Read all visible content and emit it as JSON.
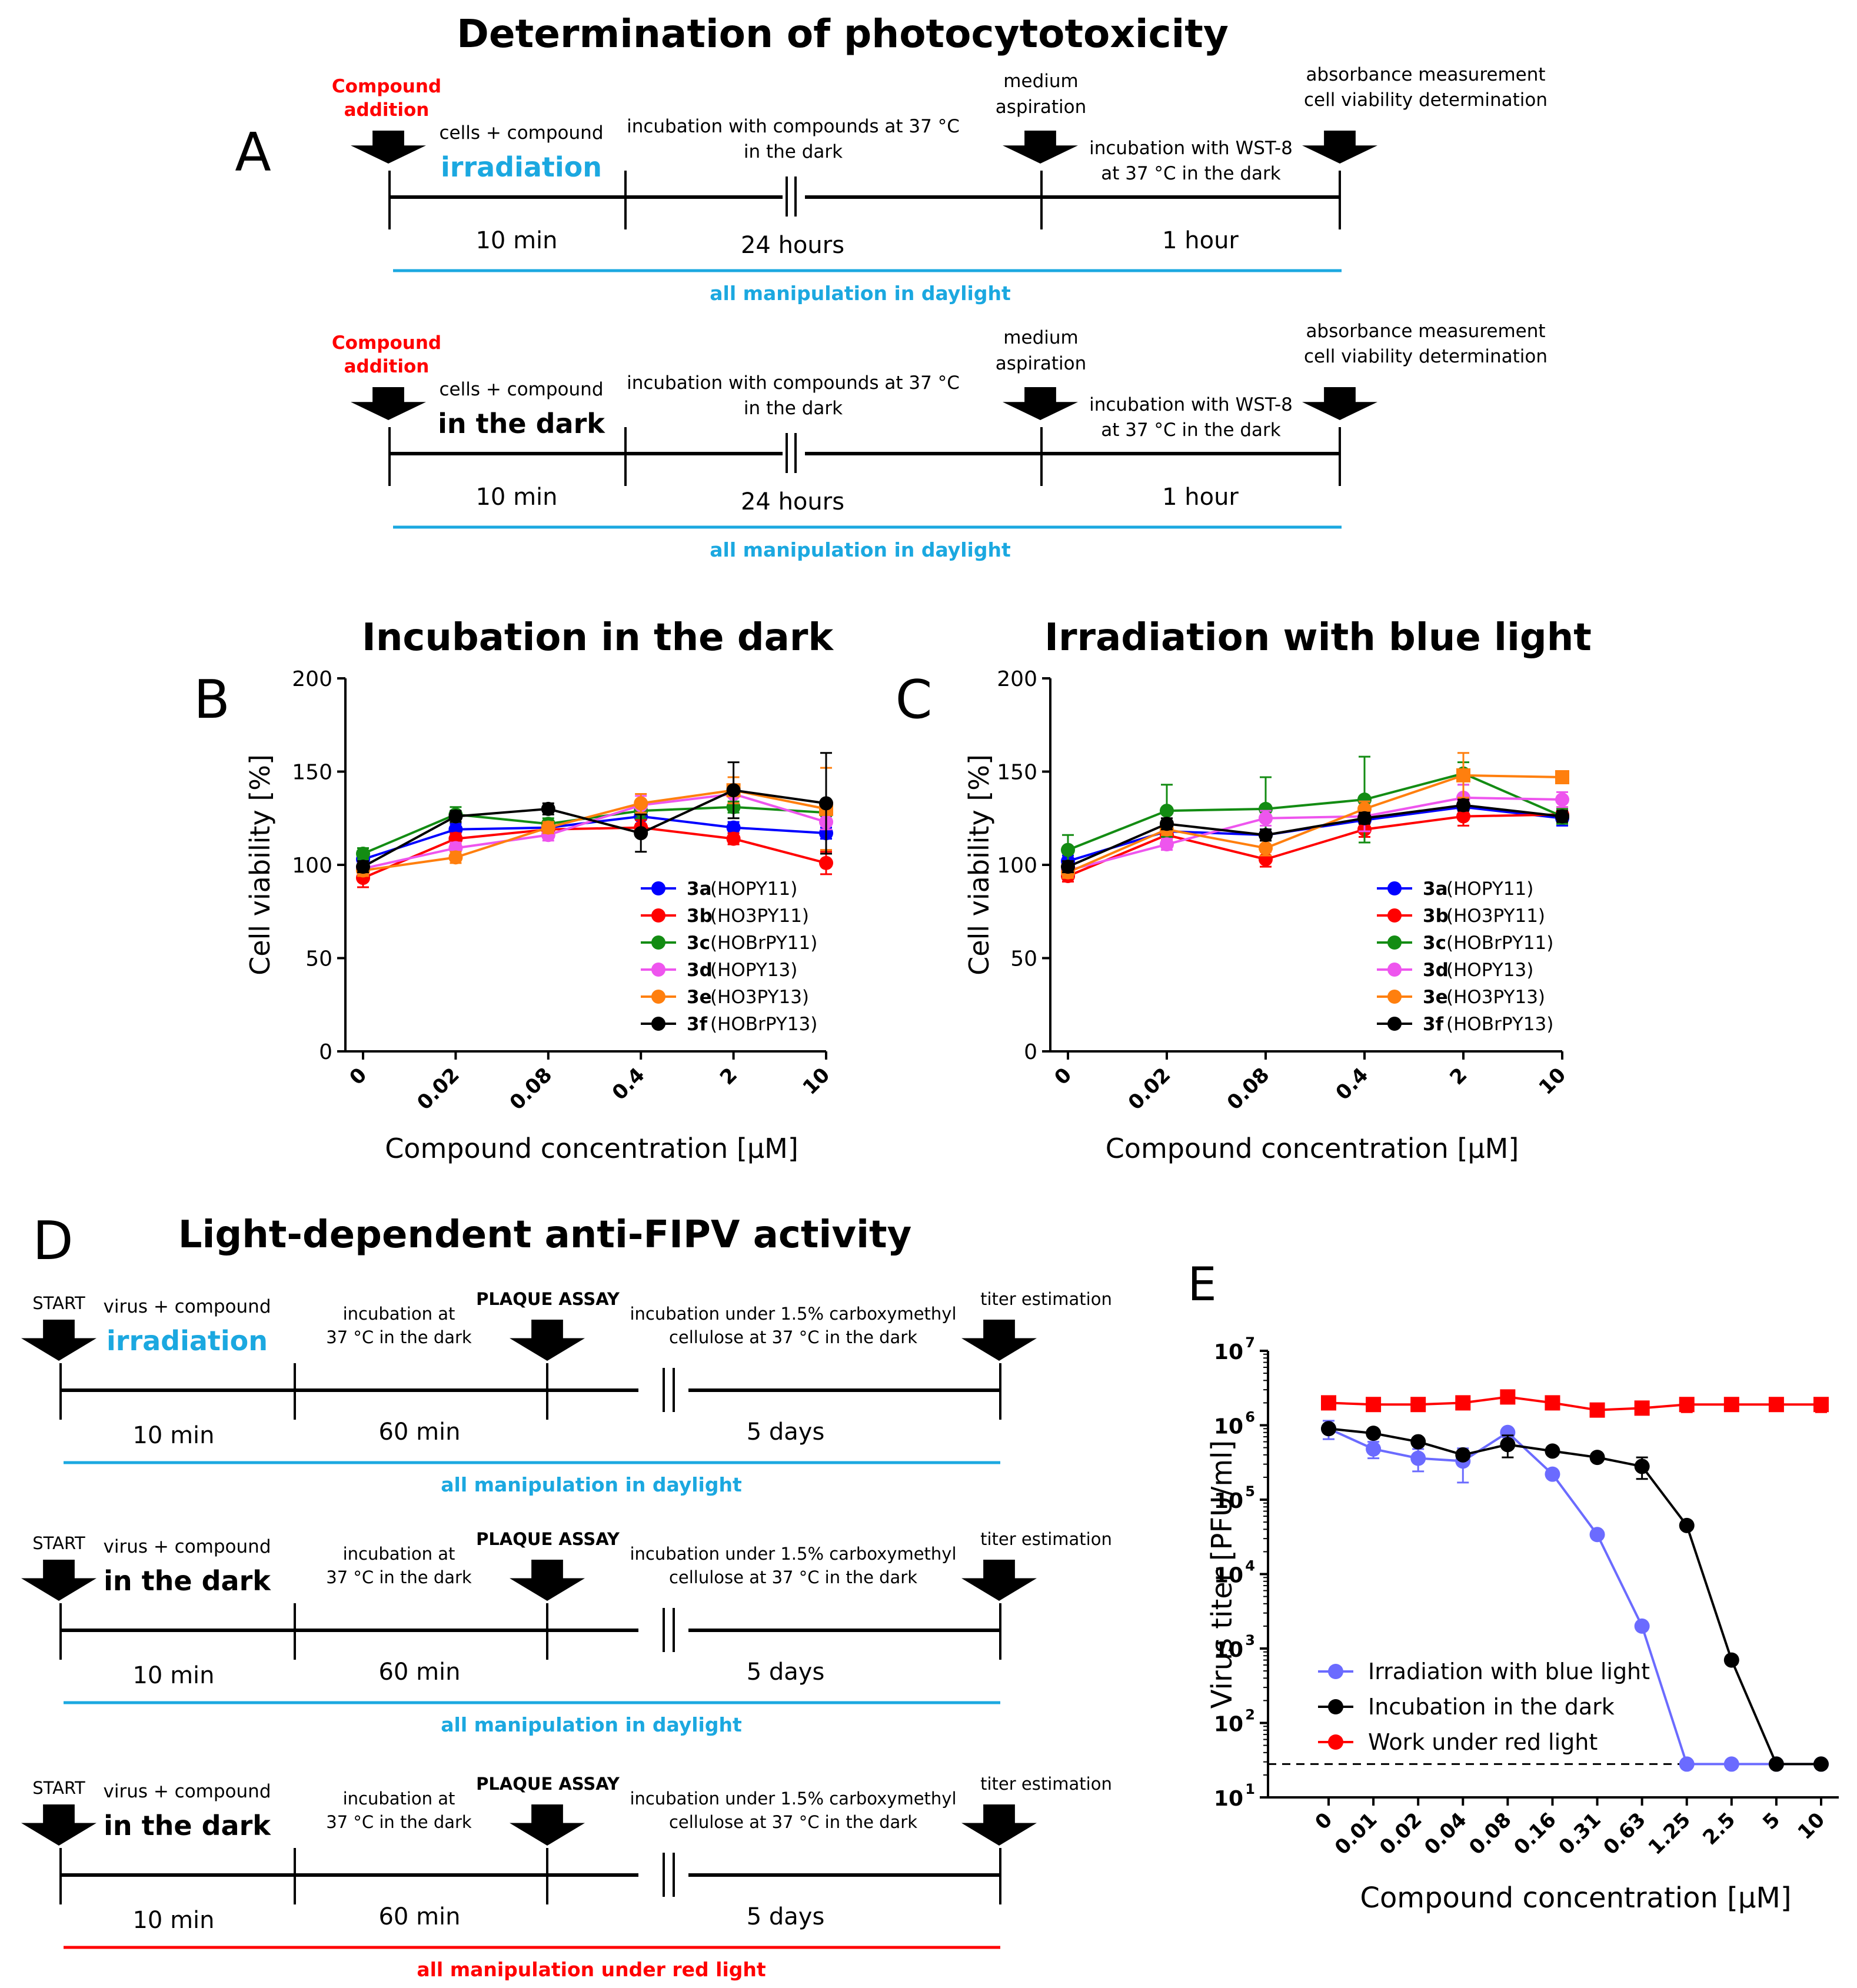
{
  "colors": {
    "red": "#ff0000",
    "cyan": "#1ba8e0",
    "black": "#000000",
    "series_3a": "#0000ff",
    "series_3b": "#ff0000",
    "series_3c": "#138c13",
    "series_3d": "#ee55ee",
    "series_3e": "#ff7f0e",
    "series_3f": "#000000",
    "blue_light": "#6b6bff",
    "dark": "#000000",
    "red_light": "#ff0000"
  },
  "icons": {
    "step_marker": "arrow-down-icon"
  },
  "panel_a": {
    "title": "Determination of photocytotoxicity",
    "letter": "A",
    "timelines": [
      {
        "compound_addition": [
          "Compound",
          "addition"
        ],
        "step1": [
          "cells + compound"
        ],
        "step1_emph": "irradiation",
        "step1_emph_color": "#1ba8e0",
        "step2": [
          "incubation with compounds at 37 °C",
          "in the dark"
        ],
        "medium": [
          "medium",
          "aspiration"
        ],
        "step3": [
          "incubation with WST-8",
          "at 37 °C in the dark"
        ],
        "end": [
          "absorbance measurement",
          "cell viability determination"
        ],
        "dur1": "10 min",
        "dur2": "24 hours",
        "dur3": "1 hour",
        "note": "all manipulation in daylight",
        "note_color": "#1ba8e0"
      },
      {
        "compound_addition": [
          "Compound",
          "addition"
        ],
        "step1": [
          "cells + compound"
        ],
        "step1_emph": "in the dark",
        "step1_emph_color": "#000000",
        "step2": [
          "incubation with compounds at 37 °C",
          "in the dark"
        ],
        "medium": [
          "medium",
          "aspiration"
        ],
        "step3": [
          "incubation with WST-8",
          "at 37 °C in the dark"
        ],
        "end": [
          "absorbance measurement",
          "cell viability determination"
        ],
        "dur1": "10 min",
        "dur2": "24 hours",
        "dur3": "1 hour",
        "note": "all manipulation in daylight",
        "note_color": "#1ba8e0"
      }
    ]
  },
  "panel_d": {
    "title": "Light-dependent anti-FIPV activity",
    "letter": "D",
    "timelines": [
      {
        "start": "START",
        "step1": "virus + compound",
        "step1_emph": "irradiation",
        "step1_emph_color": "#1ba8e0",
        "step2": [
          "incubation at",
          "37 °C in the dark"
        ],
        "plaque": "PLAQUE ASSAY",
        "step3": [
          "incubation under 1.5% carboxymethyl",
          "cellulose at 37 °C in the dark"
        ],
        "end": "titer estimation",
        "dur1": "10 min",
        "dur2": "60 min",
        "dur3": "5 days",
        "note": "all manipulation in daylight",
        "note_color": "#1ba8e0"
      },
      {
        "start": "START",
        "step1": "virus + compound",
        "step1_emph": "in the dark",
        "step1_emph_color": "#000000",
        "step2": [
          "incubation at",
          "37 °C in the dark"
        ],
        "plaque": "PLAQUE ASSAY",
        "step3": [
          "incubation under 1.5% carboxymethyl",
          "cellulose at 37 °C in the dark"
        ],
        "end": "titer estimation",
        "dur1": "10 min",
        "dur2": "60 min",
        "dur3": "5 days",
        "note": "all manipulation in daylight",
        "note_color": "#1ba8e0"
      },
      {
        "start": "START",
        "step1": "virus + compound",
        "step1_emph": "in the dark",
        "step1_emph_color": "#000000",
        "step2": [
          "incubation at",
          "37 °C in the dark"
        ],
        "plaque": "PLAQUE ASSAY",
        "step3": [
          "incubation under 1.5% carboxymethyl",
          "cellulose at 37 °C in the dark"
        ],
        "end": "titer estimation",
        "dur1": "10 min",
        "dur2": "60 min",
        "dur3": "5 days",
        "note": "all manipulation under red light",
        "note_color": "#ff0000"
      }
    ]
  },
  "chart_data": [
    {
      "id": "B",
      "letter": "B",
      "type": "line",
      "title": "Incubation in the dark",
      "xlabel": "Compound concentration [µM]",
      "ylabel": "Cell viability [%]",
      "categories": [
        "0",
        "0.02",
        "0.08",
        "0.4",
        "2",
        "10"
      ],
      "ylim": [
        0,
        200
      ],
      "yticks": [
        0,
        50,
        100,
        150,
        200
      ],
      "legend_position": "bottom-right",
      "series": [
        {
          "key": "3a",
          "name": "(HOPY11)",
          "color": "#0000ff",
          "values": [
            103,
            119,
            120,
            126,
            120,
            117
          ],
          "errors": [
            4,
            3,
            3,
            4,
            3,
            3
          ]
        },
        {
          "key": "3b",
          "name": "(HO3PY11)",
          "color": "#ff0000",
          "values": [
            93,
            114,
            119,
            120,
            114,
            101
          ],
          "errors": [
            5,
            3,
            3,
            4,
            3,
            6
          ]
        },
        {
          "key": "3c",
          "name": "(HOBrPY11)",
          "color": "#138c13",
          "values": [
            106,
            127,
            122,
            129,
            131,
            128
          ],
          "errors": [
            3,
            4,
            3,
            4,
            3,
            4
          ]
        },
        {
          "key": "3d",
          "name": "(HOPY13)",
          "color": "#ee55ee",
          "values": [
            98,
            109,
            116,
            132,
            138,
            123
          ],
          "errors": [
            3,
            3,
            3,
            5,
            5,
            4
          ]
        },
        {
          "key": "3e",
          "name": "(HO3PY13)",
          "color": "#ff7f0e",
          "values": [
            97,
            104,
            120,
            133,
            140,
            130
          ],
          "errors": [
            3,
            3,
            3,
            5,
            7,
            22
          ]
        },
        {
          "key": "3f",
          "name": "(HOBrPY13)",
          "color": "#000000",
          "values": [
            99,
            126,
            130,
            117,
            140,
            133
          ],
          "errors": [
            3,
            3,
            3,
            10,
            15,
            27
          ]
        }
      ]
    },
    {
      "id": "C",
      "letter": "C",
      "type": "line",
      "title": "Irradiation with blue light",
      "xlabel": "Compound concentration [µM]",
      "ylabel": "Cell viability [%]",
      "categories": [
        "0",
        "0.02",
        "0.08",
        "0.4",
        "2",
        "10"
      ],
      "ylim": [
        0,
        200
      ],
      "yticks": [
        0,
        50,
        100,
        150,
        200
      ],
      "legend_position": "bottom-right",
      "series": [
        {
          "key": "3a",
          "name": "(HOPY11)",
          "color": "#0000ff",
          "values": [
            102,
            118,
            116,
            124,
            131,
            125
          ],
          "errors": [
            3,
            3,
            3,
            4,
            4,
            4
          ]
        },
        {
          "key": "3b",
          "name": "(HO3PY11)",
          "color": "#ff0000",
          "values": [
            94,
            116,
            103,
            119,
            126,
            127
          ],
          "errors": [
            3,
            3,
            4,
            4,
            5,
            4
          ]
        },
        {
          "key": "3c",
          "name": "(HOBrPY11)",
          "color": "#138c13",
          "values": [
            108,
            129,
            130,
            135,
            149,
            126
          ],
          "errors": [
            8,
            14,
            17,
            23,
            6,
            4
          ]
        },
        {
          "key": "3d",
          "name": "(HOPY13)",
          "color": "#ee55ee",
          "values": [
            97,
            111,
            125,
            126,
            136,
            135
          ],
          "errors": [
            3,
            3,
            4,
            8,
            7,
            4
          ]
        },
        {
          "key": "3e",
          "name": "(HO3PY13)",
          "color": "#ff7f0e",
          "values": [
            96,
            119,
            109,
            130,
            148,
            147
          ],
          "errors": [
            3,
            3,
            4,
            4,
            12,
            3
          ]
        },
        {
          "key": "3f",
          "name": "(HOBrPY13)",
          "color": "#000000",
          "values": [
            99,
            122,
            116,
            125,
            132,
            126
          ],
          "errors": [
            3,
            3,
            3,
            3,
            3,
            3
          ]
        }
      ]
    },
    {
      "id": "E",
      "letter": "E",
      "type": "line",
      "title": "",
      "xlabel": "Compound concentration [µM]",
      "ylabel": "Virus titer [PFU/ml]",
      "yscale": "log10",
      "ylim_log10": [
        1,
        7
      ],
      "ytick_exponents": [
        1,
        2,
        3,
        4,
        5,
        6,
        7
      ],
      "ytick_base": "10",
      "categories": [
        "0",
        "0.01",
        "0.02",
        "0.04",
        "0.08",
        "0.16",
        "0.31",
        "0.63",
        "1.25",
        "2.5",
        "5",
        "10"
      ],
      "detection_limit": 28,
      "legend_position": "bottom-left",
      "series": [
        {
          "name": "Irradiation with blue light",
          "color": "#6b6bff",
          "values": [
            900000,
            480000,
            360000,
            330000,
            800000,
            220000,
            34000,
            2000,
            28,
            28,
            28,
            28
          ],
          "errors": [
            250000,
            120000,
            120000,
            160000,
            0,
            0,
            0,
            0,
            0,
            0,
            0,
            0
          ]
        },
        {
          "name": "Incubation in the dark",
          "color": "#000000",
          "values": [
            900000,
            780000,
            600000,
            400000,
            550000,
            450000,
            370000,
            280000,
            45000,
            700,
            28,
            28
          ],
          "errors": [
            0,
            0,
            0,
            0,
            180000,
            0,
            0,
            90000,
            0,
            0,
            0,
            0
          ]
        },
        {
          "name": "Work under red light",
          "color": "#ff0000",
          "values": [
            2000000,
            1900000,
            1900000,
            2000000,
            2400000,
            2000000,
            1600000,
            1700000,
            1900000,
            1900000,
            1900000,
            1900000
          ],
          "errors": [
            0,
            0,
            250000,
            0,
            250000,
            0,
            250000,
            250000,
            400000,
            0,
            250000,
            400000
          ]
        }
      ]
    }
  ]
}
